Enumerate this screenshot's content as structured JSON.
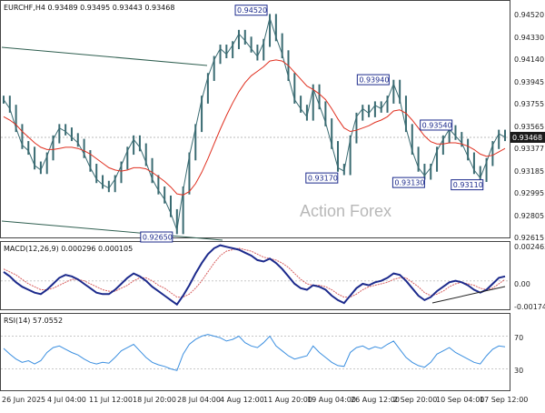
{
  "watermark": "Action Forex",
  "colors": {
    "price": "#3a6b72",
    "ma": "#e03020",
    "channel": "#2f5f50",
    "macd_line": "#1c2a8c",
    "macd_signal": "#d86060",
    "rsi": "#3b8fe0",
    "current_bg": "#1a1a1a",
    "label_border": "#1c2a8c"
  },
  "chart_data": [
    {
      "type": "line",
      "title": "EURCHF,H4  0.93489 0.93495 0.93443 0.93468",
      "ylim": [
        0.9261,
        0.9463
      ],
      "ytick_labels": [
        "0.94520",
        "0.94330",
        "0.94140",
        "0.93945",
        "0.93755",
        "0.93565",
        "0.93377",
        "0.93185",
        "0.92995",
        "0.92805",
        "0.92615"
      ],
      "current_value": "0.93468",
      "annotations": [
        "0.94520",
        "0.93940",
        "0.93540",
        "0.93170",
        "0.93130",
        "0.93110",
        "0.92650"
      ],
      "series": [
        {
          "values": [
            0.938,
            0.9372,
            0.9355,
            0.934,
            0.9335,
            0.9322,
            0.9318,
            0.933,
            0.9345,
            0.9355,
            0.9352,
            0.9347,
            0.9342,
            0.9332,
            0.932,
            0.931,
            0.9305,
            0.9302,
            0.931,
            0.9322,
            0.9335,
            0.9345,
            0.9338,
            0.9325,
            0.931,
            0.93,
            0.9292,
            0.928,
            0.9265,
            0.93,
            0.933,
            0.9355,
            0.938,
            0.94,
            0.9415,
            0.9425,
            0.942,
            0.9428,
            0.9438,
            0.9432,
            0.9425,
            0.9418,
            0.943,
            0.9452,
            0.9435,
            0.942,
            0.94,
            0.938,
            0.9372,
            0.9365,
            0.939,
            0.9375,
            0.936,
            0.934,
            0.932,
            0.9317,
            0.9345,
            0.9365,
            0.9372,
            0.9368,
            0.9375,
            0.9372,
            0.938,
            0.9394,
            0.938,
            0.9355,
            0.9335,
            0.932,
            0.9313,
            0.932,
            0.9335,
            0.9345,
            0.9354,
            0.9348,
            0.9342,
            0.933,
            0.9318,
            0.9311,
            0.9325,
            0.934,
            0.935,
            0.9347
          ]
        },
        {
          "values": [
            0.9365,
            0.9362,
            0.9358,
            0.9352,
            0.9347,
            0.9342,
            0.9338,
            0.9336,
            0.9336,
            0.9337,
            0.9338,
            0.9338,
            0.9337,
            0.9335,
            0.9332,
            0.9328,
            0.9324,
            0.932,
            0.9318,
            0.9317,
            0.9318,
            0.932,
            0.932,
            0.9319,
            0.9316,
            0.9312,
            0.9308,
            0.9303,
            0.9297,
            0.9296,
            0.9299,
            0.9306,
            0.9316,
            0.9328,
            0.9341,
            0.9354,
            0.9366,
            0.9377,
            0.9387,
            0.9395,
            0.9401,
            0.9405,
            0.9409,
            0.9414,
            0.9415,
            0.9414,
            0.941,
            0.9404,
            0.9398,
            0.9392,
            0.9389,
            0.9385,
            0.938,
            0.9372,
            0.9363,
            0.9355,
            0.9352,
            0.9353,
            0.9355,
            0.9357,
            0.936,
            0.9362,
            0.9365,
            0.937,
            0.9371,
            0.9368,
            0.9362,
            0.9355,
            0.9348,
            0.9343,
            0.9341,
            0.9341,
            0.9342,
            0.9342,
            0.9341,
            0.9339,
            0.9336,
            0.9332,
            0.933,
            0.9331,
            0.9334,
            0.9337
          ]
        }
      ]
    },
    {
      "type": "line",
      "title": "MACD(12,26,9) 0.000296 0.000105",
      "ylim": [
        -0.0018,
        0.0025
      ],
      "ytick_labels": [
        "0.002463",
        "0.00",
        "-0.00174"
      ],
      "series": [
        {
          "values": [
            0.0006,
            0.0003,
            -0.0001,
            -0.0004,
            -0.0006,
            -0.0008,
            -0.0009,
            -0.0006,
            -0.0002,
            0.0002,
            0.0004,
            0.0003,
            0.0001,
            -0.0002,
            -0.0005,
            -0.0008,
            -0.0009,
            -0.0009,
            -0.0006,
            -0.0002,
            0.0002,
            0.0005,
            0.0003,
            0.0,
            -0.0004,
            -0.0007,
            -0.001,
            -0.0013,
            -0.0016,
            -0.001,
            -0.0003,
            0.0005,
            0.0012,
            0.0018,
            0.0022,
            0.0024,
            0.0023,
            0.0022,
            0.0021,
            0.0019,
            0.0017,
            0.0014,
            0.0013,
            0.0015,
            0.0012,
            0.0008,
            0.0003,
            -0.0002,
            -0.0005,
            -0.0006,
            -0.0003,
            -0.0004,
            -0.0006,
            -0.001,
            -0.0013,
            -0.0015,
            -0.001,
            -0.0005,
            -0.0002,
            -0.0003,
            -0.0001,
            0.0,
            0.0002,
            0.0005,
            0.0004,
            0.0,
            -0.0005,
            -0.001,
            -0.0013,
            -0.0011,
            -0.0007,
            -0.0004,
            -0.0001,
            0.0,
            -0.0001,
            -0.0003,
            -0.0006,
            -0.0008,
            -0.0006,
            -0.0002,
            0.0002,
            0.0003
          ]
        },
        {
          "values": [
            0.0008,
            0.0006,
            0.0004,
            0.0001,
            -0.0002,
            -0.0004,
            -0.0006,
            -0.0006,
            -0.0005,
            -0.0003,
            -0.0001,
            0.0001,
            0.0001,
            0.0,
            -0.0002,
            -0.0004,
            -0.0006,
            -0.0007,
            -0.0007,
            -0.0005,
            -0.0003,
            0.0,
            0.0002,
            0.0002,
            0.0,
            -0.0003,
            -0.0005,
            -0.0008,
            -0.0011,
            -0.0011,
            -0.0009,
            -0.0005,
            0.0,
            0.0006,
            0.0012,
            0.0017,
            0.002,
            0.0021,
            0.0022,
            0.0021,
            0.002,
            0.0018,
            0.0016,
            0.0015,
            0.0014,
            0.0012,
            0.0009,
            0.0005,
            0.0001,
            -0.0002,
            -0.0003,
            -0.0003,
            -0.0004,
            -0.0006,
            -0.0009,
            -0.0011,
            -0.0011,
            -0.0009,
            -0.0006,
            -0.0004,
            -0.0003,
            -0.0002,
            -0.0001,
            0.0001,
            0.0002,
            0.0002,
            -0.0001,
            -0.0004,
            -0.0008,
            -0.001,
            -0.0009,
            -0.0007,
            -0.0004,
            -0.0002,
            -0.0001,
            -0.0002,
            -0.0003,
            -0.0005,
            -0.0006,
            -0.0005,
            -0.0002,
            0.0001
          ]
        }
      ]
    },
    {
      "type": "line",
      "title": "RSI(14) 57.0552",
      "ylim": [
        5,
        95
      ],
      "ytick_labels": [
        "70",
        "30"
      ],
      "series": [
        {
          "values": [
            55,
            48,
            42,
            38,
            40,
            36,
            40,
            50,
            56,
            58,
            54,
            50,
            47,
            42,
            38,
            36,
            38,
            37,
            44,
            52,
            56,
            60,
            52,
            44,
            38,
            35,
            33,
            30,
            28,
            48,
            60,
            66,
            70,
            72,
            70,
            68,
            64,
            66,
            70,
            62,
            58,
            56,
            62,
            70,
            58,
            52,
            46,
            42,
            44,
            46,
            58,
            50,
            44,
            38,
            34,
            33,
            50,
            56,
            58,
            54,
            57,
            55,
            60,
            64,
            54,
            44,
            38,
            34,
            32,
            38,
            48,
            52,
            56,
            50,
            46,
            42,
            38,
            36,
            46,
            54,
            58,
            57
          ]
        }
      ]
    }
  ],
  "x_tick_labels": [
    "26 Jun 2025",
    "4 Jul 04:00",
    "11 Jul 12:00",
    "18 Jul 20:00",
    "28 Jul 04:00",
    "4 Aug 12:00",
    "11 Aug 20:00",
    "19 Aug 04:00",
    "26 Aug 12:00",
    "2 Sep 20:00",
    "10 Sep 04:00",
    "17 Sep 12:00"
  ]
}
